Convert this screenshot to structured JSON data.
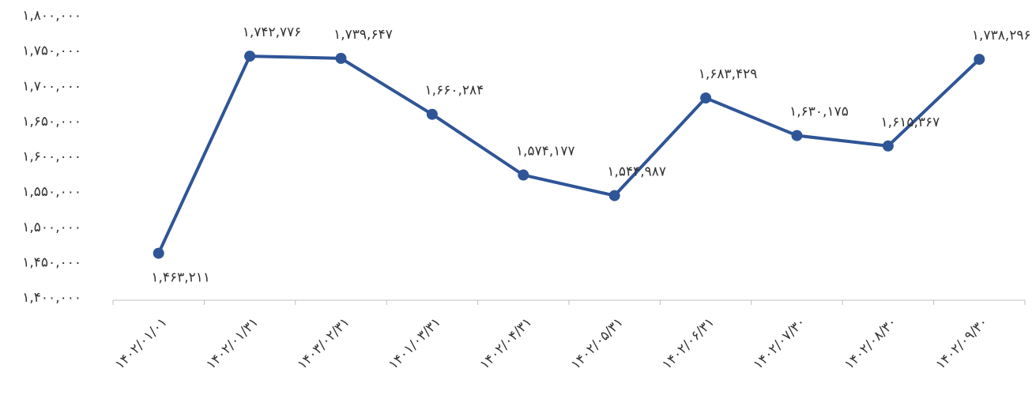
{
  "chart_data": {
    "type": "line",
    "categories": [
      "۱۴۰۲/۰۱/۰۱",
      "۱۴۰۲/۰۱/۳۱",
      "۱۴۰۳/۰۲/۳۱",
      "۱۴۰۱/۰۳/۳۱",
      "۱۴۰۲/۰۴/۳۱",
      "۱۴۰۲/۰۵/۳۱",
      "۱۴۰۲/۰۶/۳۱",
      "۱۴۰۲/۰۷/۳۰",
      "۱۴۰۲/۰۸/۳۰",
      "۱۴۰۲/۰۹/۳۰"
    ],
    "values": [
      1463211,
      1742776,
      1739647,
      1660284,
      1574177,
      1544987,
      1683429,
      1630175,
      1615367,
      1738296
    ],
    "value_labels": [
      "۱,۴۶۳,۲۱۱",
      "۱,۷۴۲,۷۷۶",
      "۱,۷۳۹,۶۴۷",
      "۱,۶۶۰,۲۸۴",
      "۱,۵۷۴,۱۷۷",
      "۱,۵۴۴,۹۸۷",
      "۱,۶۸۳,۴۲۹",
      "۱,۶۳۰,۱۷۵",
      "۱,۶۱۵,۳۶۷",
      "۱,۷۳۸,۲۹۶"
    ],
    "color": "#2f5597",
    "ylim": [
      1400000,
      1800000
    ],
    "yticks": [
      {
        "value": 1400000,
        "label": "۱,۴۰۰,۰۰۰"
      },
      {
        "value": 1450000,
        "label": "۱,۴۵۰,۰۰۰"
      },
      {
        "value": 1500000,
        "label": "۱,۵۰۰,۰۰۰"
      },
      {
        "value": 1550000,
        "label": "۱,۵۵۰,۰۰۰"
      },
      {
        "value": 1600000,
        "label": "۱,۶۰۰,۰۰۰"
      },
      {
        "value": 1650000,
        "label": "۱,۶۵۰,۰۰۰"
      },
      {
        "value": 1700000,
        "label": "۱,۷۰۰,۰۰۰"
      },
      {
        "value": 1750000,
        "label": "۱,۷۵۰,۰۰۰"
      },
      {
        "value": 1800000,
        "label": "۱,۸۰۰,۰۰۰"
      }
    ],
    "grid": false
  }
}
